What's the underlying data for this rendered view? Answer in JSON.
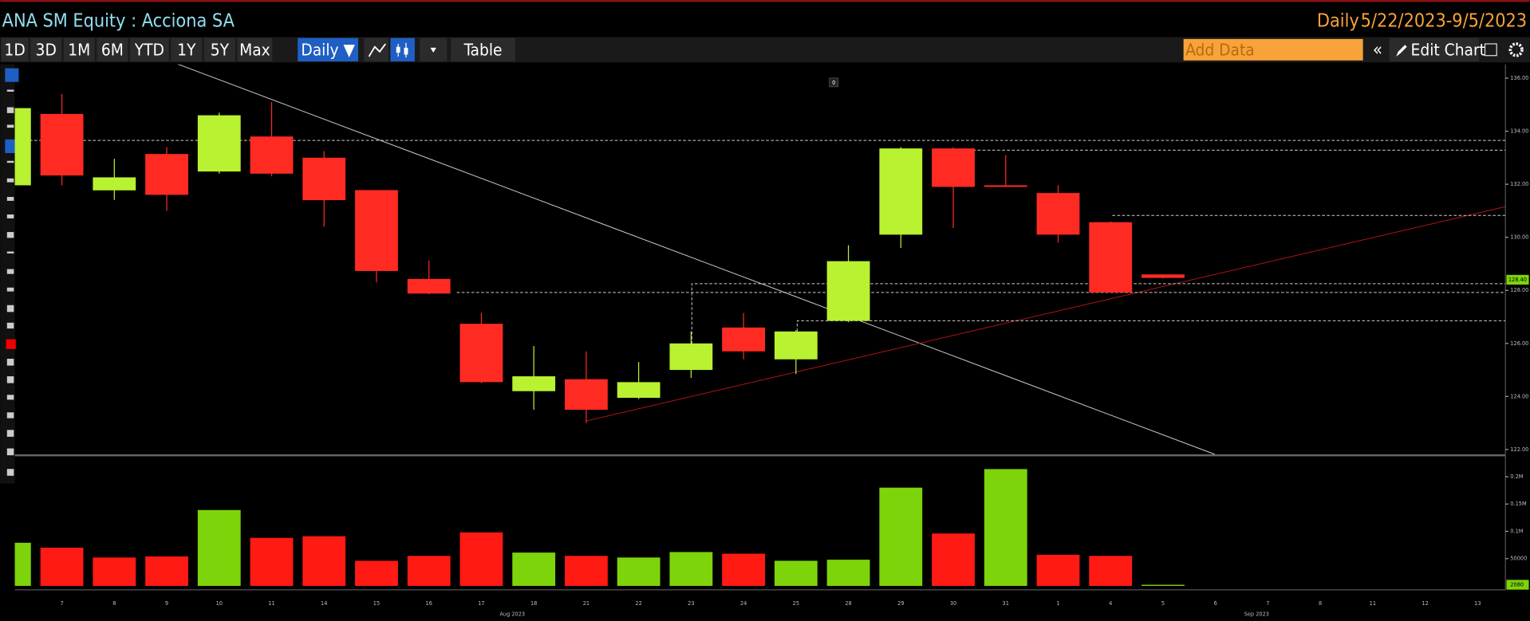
{
  "header": {
    "title": "ANA SM Equity : Acciona SA",
    "frequency": "Daily",
    "range": "5/22/2023-9/5/2023"
  },
  "toolbar": {
    "periods": [
      "1D",
      "3D",
      "1M",
      "6M",
      "YTD",
      "1Y",
      "5Y",
      "Max"
    ],
    "frequency": "Daily ▼",
    "table": "Table",
    "add_data": "Add Data",
    "edit_chart": "Edit Chart"
  },
  "chart_data": [
    {
      "type": "candlestick",
      "categories": [
        null,
        "7",
        "8",
        "9",
        "10",
        "11",
        "14",
        "15",
        "16",
        "17",
        "18",
        "21",
        "22",
        "23",
        "24",
        "25",
        "28",
        "29",
        "30",
        "31",
        "1",
        "4",
        "5",
        "6",
        "7",
        "8",
        "11",
        "12",
        "13"
      ],
      "open": [
        131.96,
        134.65,
        131.77,
        133.14,
        132.48,
        133.8,
        133.0,
        131.78,
        128.43,
        126.74,
        124.2,
        124.65,
        123.95,
        125.0,
        126.6,
        125.4,
        126.85,
        130.1,
        133.35,
        131.96,
        131.67,
        130.57,
        128.6,
        null,
        null,
        null,
        null,
        null,
        null
      ],
      "high": [
        135.0,
        135.4,
        132.96,
        133.4,
        134.7,
        135.1,
        133.25,
        131.78,
        129.13,
        127.15,
        125.9,
        125.7,
        125.3,
        126.45,
        127.15,
        126.5,
        129.7,
        133.4,
        133.4,
        133.1,
        131.96,
        130.6,
        128.6,
        null,
        null,
        null,
        null,
        null,
        null
      ],
      "low": [
        131.9,
        131.96,
        131.41,
        131.0,
        132.4,
        132.3,
        130.4,
        128.3,
        127.85,
        124.5,
        123.5,
        123.0,
        123.9,
        124.7,
        125.4,
        124.85,
        126.8,
        129.6,
        130.35,
        131.9,
        129.8,
        127.9,
        128.45,
        null,
        null,
        null,
        null,
        null,
        null
      ],
      "close": [
        134.87,
        132.33,
        132.26,
        131.6,
        134.6,
        132.4,
        131.4,
        128.73,
        127.88,
        124.54,
        124.76,
        123.5,
        124.54,
        126.0,
        125.7,
        126.45,
        129.1,
        133.35,
        131.9,
        131.9,
        130.1,
        127.92,
        128.47,
        null,
        null,
        null,
        null,
        null,
        null
      ],
      "up_color": "#b9f230",
      "down_color": "#ff2b22",
      "ylim": [
        121.82,
        136.52
      ],
      "yticks": [
        {
          "value": 122,
          "label": "122.00"
        },
        {
          "value": 124,
          "label": "124.00"
        },
        {
          "value": 126,
          "label": "126.00"
        },
        {
          "value": 128,
          "label": "128.00"
        },
        {
          "value": 130,
          "label": "130.00"
        },
        {
          "value": 132,
          "label": "132.00"
        },
        {
          "value": 134,
          "label": "134.00"
        },
        {
          "value": 136,
          "label": "136.00"
        }
      ],
      "last_price": {
        "value": 128.4,
        "label": "128.40"
      },
      "month_labels": [
        "Aug 2023",
        "Sep 2023"
      ]
    },
    {
      "type": "bar",
      "values": [
        79000,
        70000,
        52000,
        54000,
        139000,
        88000,
        91000,
        46000,
        55000,
        98000,
        61000,
        55000,
        52000,
        62000,
        59000,
        46000,
        48000,
        180000,
        96000,
        214000,
        57000,
        55000,
        2080,
        null,
        null,
        null,
        null,
        null,
        null
      ],
      "colors": [
        "#7dd40a",
        "#ff1a14",
        "#ff1a14",
        "#ff1a14",
        "#7dd40a",
        "#ff1a14",
        "#ff1a14",
        "#ff1a14",
        "#ff1a14",
        "#ff1a14",
        "#7dd40a",
        "#ff1a14",
        "#7dd40a",
        "#7dd40a",
        "#ff1a14",
        "#7dd40a",
        "#7dd40a",
        "#7dd40a",
        "#ff1a14",
        "#7dd40a",
        "#ff1a14",
        "#ff1a14",
        "#7dd40a",
        null,
        null,
        null,
        null,
        null,
        null
      ],
      "ylim": [
        0,
        225000
      ],
      "yticks": [
        50000,
        {
          "value": 100000,
          "label": "0.1M"
        },
        {
          "value": 150000,
          "label": "0.15M"
        },
        {
          "value": 200000,
          "label": "0.2M"
        }
      ],
      "last_value": 2080
    }
  ]
}
